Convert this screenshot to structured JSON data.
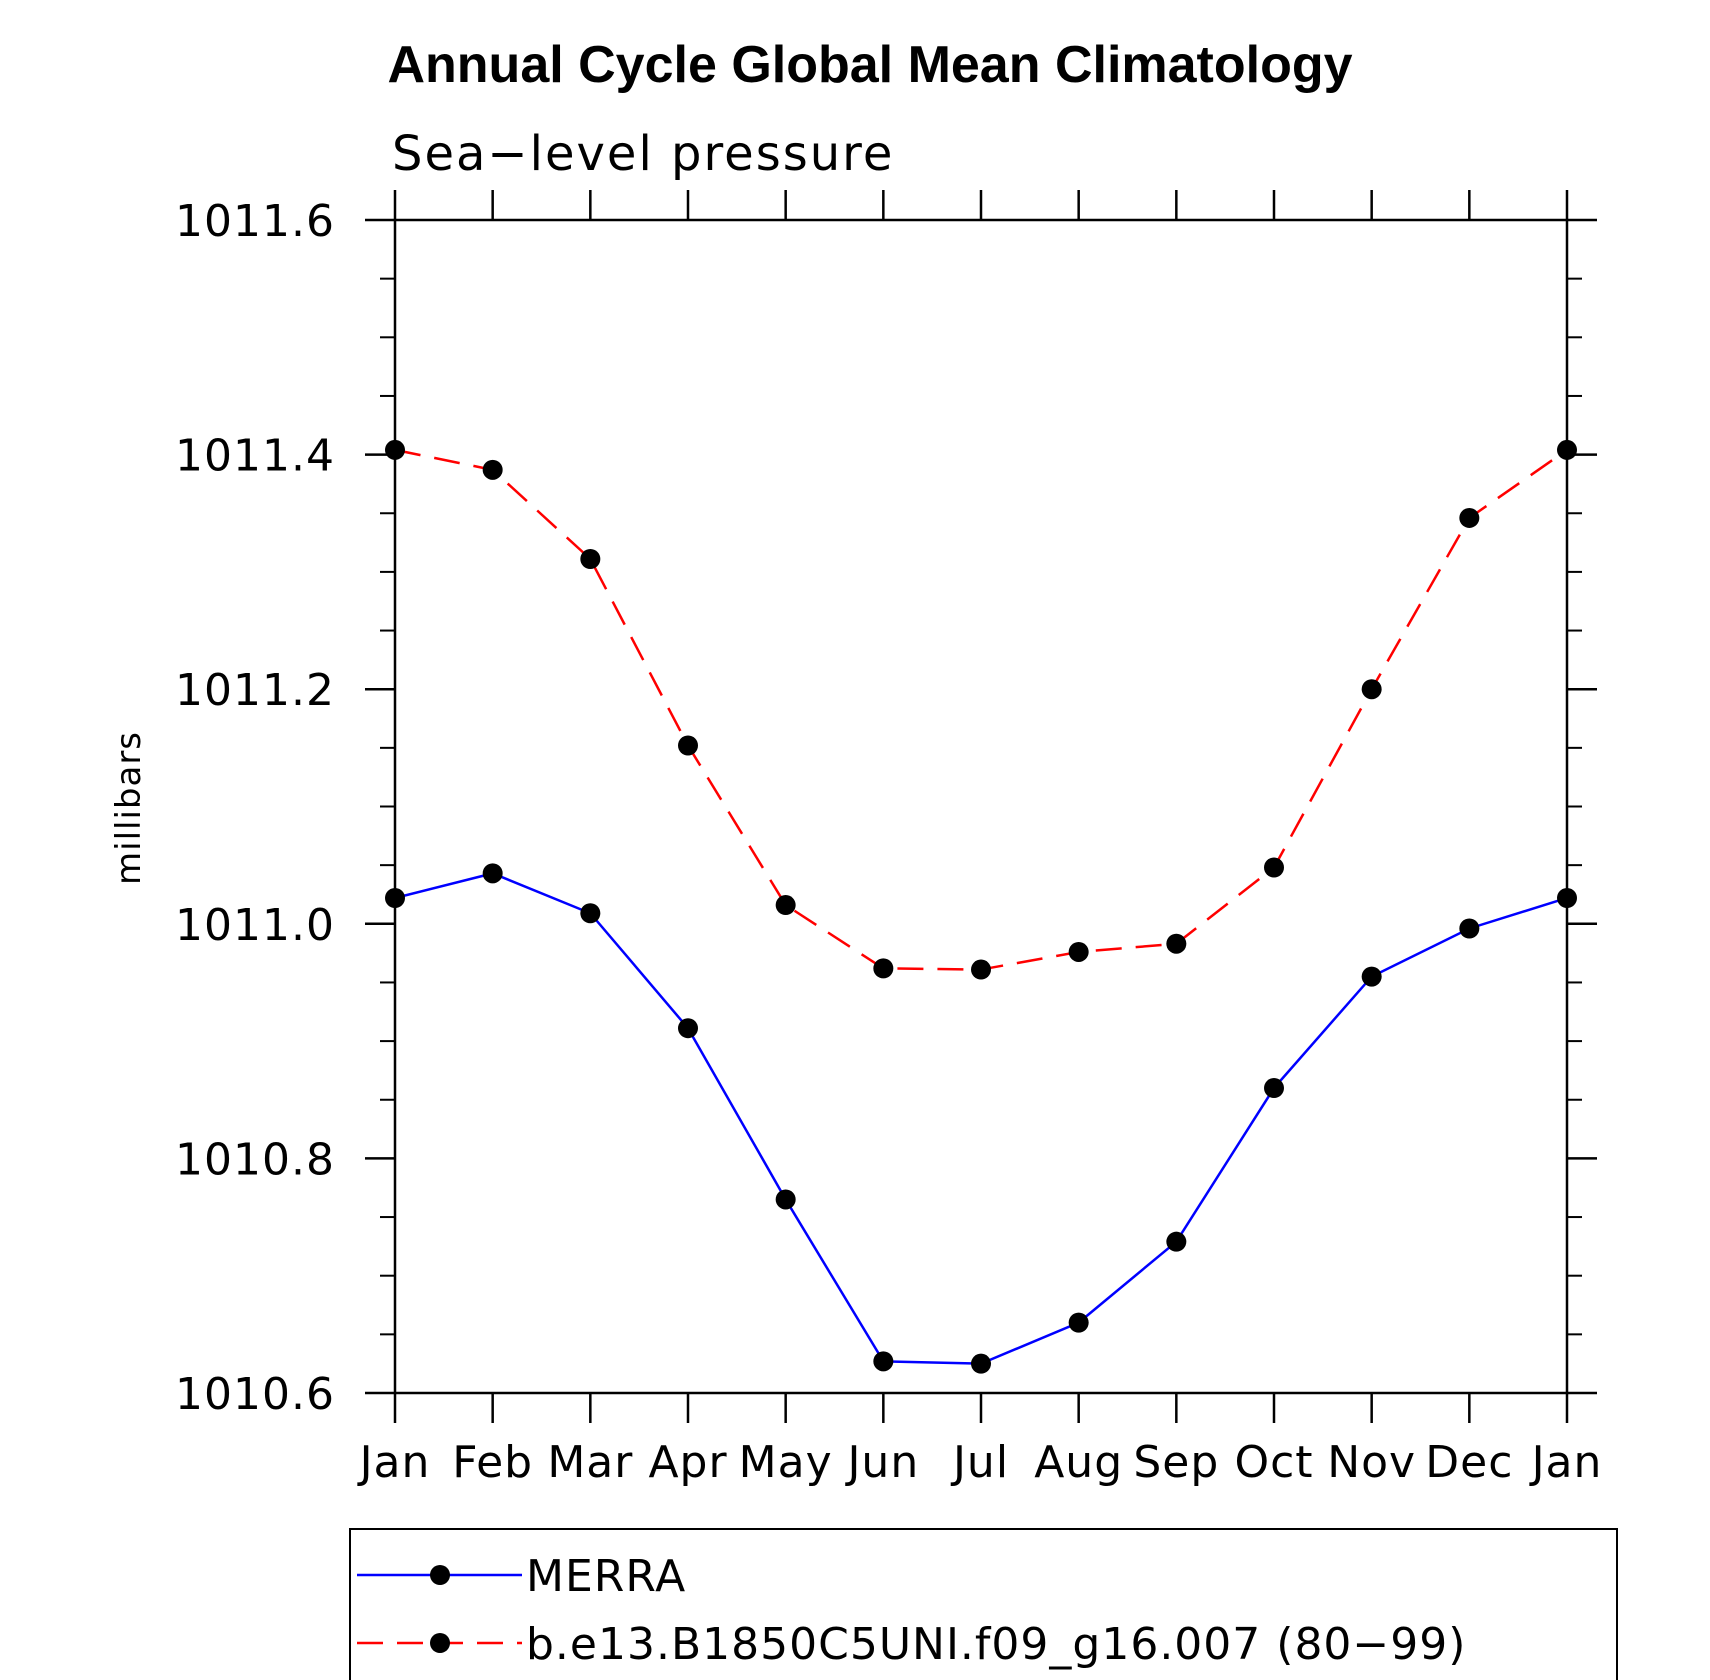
{
  "chart_data": {
    "type": "line",
    "title": "Annual Cycle Global Mean Climatology",
    "subtitle": "Sea−level pressure",
    "ylabel": "millibars",
    "xlabel": "",
    "categories": [
      "Jan",
      "Feb",
      "Mar",
      "Apr",
      "May",
      "Jun",
      "Jul",
      "Aug",
      "Sep",
      "Oct",
      "Nov",
      "Dec",
      "Jan"
    ],
    "ylim": [
      1010.6,
      1011.6
    ],
    "yticks": [
      "1010.6",
      "1010.8",
      "1011.0",
      "1011.2",
      "1011.4",
      "1011.6"
    ],
    "grid": false,
    "legend_position": "bottom",
    "series": [
      {
        "name": "MERRA",
        "color": "#0000ff",
        "dash": "solid",
        "marker": "filled-circle",
        "values": [
          1011.022,
          1011.043,
          1011.009,
          1010.911,
          1010.765,
          1010.627,
          1010.625,
          1010.66,
          1010.729,
          1010.86,
          1010.955,
          1010.996,
          1011.022
        ]
      },
      {
        "name": "b.e13.B1850C5UNI.f09_g16.007 (80−99)",
        "color": "#ff0000",
        "dash": "dashed",
        "marker": "filled-circle",
        "values": [
          1011.404,
          1011.387,
          1011.311,
          1011.152,
          1011.016,
          1010.962,
          1010.961,
          1010.976,
          1010.983,
          1011.048,
          1011.2,
          1011.346,
          1011.404
        ]
      }
    ]
  }
}
